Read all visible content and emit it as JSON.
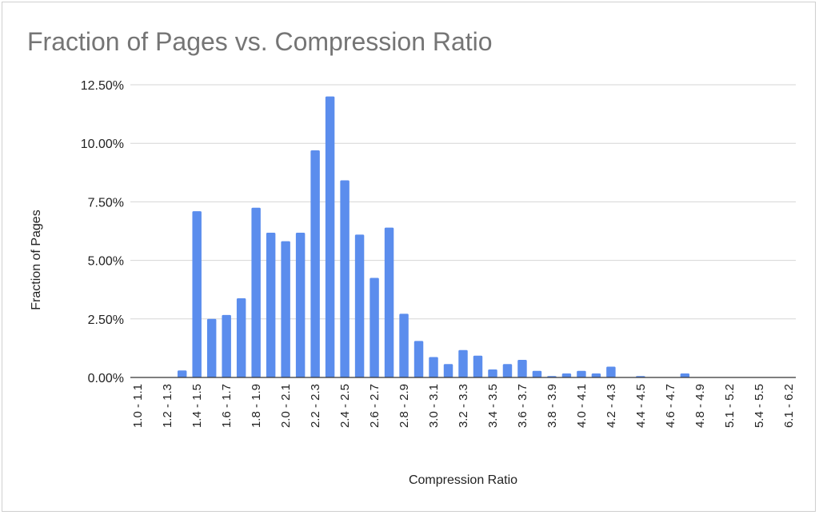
{
  "chart_data": {
    "type": "bar",
    "title": "Fraction of Pages vs. Compression Ratio",
    "xlabel": "Compression Ratio",
    "ylabel": "Fraction of Pages",
    "ylim": [
      0,
      12.5
    ],
    "yticks": [
      0,
      2.5,
      5,
      7.5,
      10,
      12.5
    ],
    "ytick_labels": [
      "0.00%",
      "2.50%",
      "5.00%",
      "7.50%",
      "10.00%",
      "12.50%"
    ],
    "value_format": "percent",
    "grid": true,
    "legend": "none",
    "bar_color": "#5b8ded",
    "categories": [
      "1.0 - 1.1",
      "1.1 - 1.2",
      "1.2 - 1.3",
      "1.3 - 1.4",
      "1.4 - 1.5",
      "1.5 - 1.6",
      "1.6 - 1.7",
      "1.7 - 1.8",
      "1.8 - 1.9",
      "1.9 - 2.0",
      "2.0 - 2.1",
      "2.1 - 2.2",
      "2.2 - 2.3",
      "2.3 - 2.4",
      "2.4 - 2.5",
      "2.5 - 2.6",
      "2.6 - 2.7",
      "2.7 - 2.8",
      "2.8 - 2.9",
      "2.9 - 3.0",
      "3.0 - 3.1",
      "3.1 - 3.2",
      "3.2 - 3.3",
      "3.3 - 3.4",
      "3.4 - 3.5",
      "3.5 - 3.6",
      "3.6 - 3.7",
      "3.7 - 3.8",
      "3.8 - 3.9",
      "3.9 - 4.0",
      "4.0 - 4.1",
      "4.1 - 4.2",
      "4.2 - 4.3",
      "4.3 - 4.4",
      "4.4 - 4.5",
      "4.5 - 4.6",
      "4.6 - 4.7",
      "4.7 - 4.8",
      "4.8 - 4.9",
      "4.9 - 5.1",
      "5.1 - 5.2",
      "5.2 - 5.4",
      "5.4 - 5.5",
      "5.5 - 6.1",
      "6.1 - 6.2"
    ],
    "shown_tick_labels": [
      "1.0 - 1.1",
      "1.2 - 1.3",
      "1.4 - 1.5",
      "1.6 - 1.7",
      "1.8 - 1.9",
      "2.0 - 2.1",
      "2.2 - 2.3",
      "2.4 - 2.5",
      "2.6 - 2.7",
      "2.8 - 2.9",
      "3.0 - 3.1",
      "3.2 - 3.3",
      "3.4 - 3.5",
      "3.6 - 3.7",
      "3.8 - 3.9",
      "4.0 - 4.1",
      "4.2 - 4.3",
      "4.4 - 4.5",
      "4.6 - 4.7",
      "4.8 - 4.9",
      "5.1 - 5.2",
      "5.4 - 5.5",
      "6.1 - 6.2"
    ],
    "values": [
      0,
      0,
      0,
      0.3,
      7.1,
      2.5,
      2.67,
      3.38,
      7.25,
      6.18,
      5.82,
      6.18,
      9.7,
      12.0,
      8.42,
      6.1,
      4.25,
      6.4,
      2.72,
      1.56,
      0.87,
      0.57,
      1.17,
      0.93,
      0.34,
      0.57,
      0.75,
      0.28,
      0.06,
      0.17,
      0.28,
      0.17,
      0.46,
      0,
      0.06,
      0,
      0,
      0.17,
      0,
      0,
      0,
      0,
      0,
      0,
      0
    ]
  }
}
